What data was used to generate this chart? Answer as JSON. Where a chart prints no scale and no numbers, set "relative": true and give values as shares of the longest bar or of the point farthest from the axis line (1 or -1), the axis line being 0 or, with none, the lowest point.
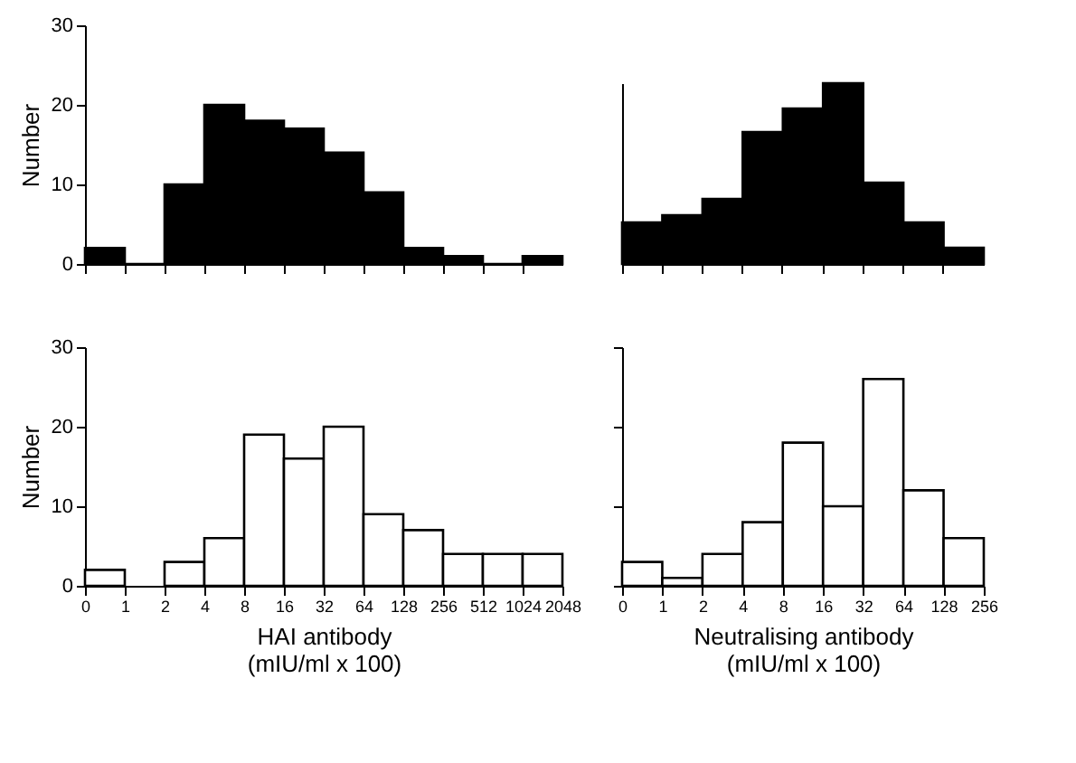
{
  "chart_data": [
    {
      "type": "bar",
      "ylabel": "Number",
      "categories": [
        null,
        null,
        null,
        null,
        null,
        null,
        null,
        null,
        null,
        null,
        null,
        null
      ],
      "values": [
        2,
        0,
        10,
        20,
        18,
        17,
        14,
        9,
        2,
        1,
        0,
        1
      ],
      "color": "#000000",
      "ylim": [
        0,
        30
      ],
      "yticks": [
        0,
        10,
        20,
        30
      ],
      "tick_labels": "y",
      "grid": false
    },
    {
      "type": "bar",
      "relative": true,
      "categories": [
        null,
        null,
        null,
        null,
        null,
        null,
        null,
        null,
        null
      ],
      "values": [
        0.23,
        0.27,
        0.36,
        0.73,
        0.86,
        1,
        0.45,
        0.23,
        0.09
      ],
      "color": "#000000",
      "tick_labels": false,
      "grid": false
    },
    {
      "type": "histogram",
      "ylabel": "Number",
      "xlabel": "HAI antibody\n(mIU/ml x 100)",
      "log": "x",
      "bins": [
        0.5,
        1,
        2,
        4,
        8,
        16,
        32,
        64,
        128,
        256,
        512,
        1024,
        2048
      ],
      "values": [
        2,
        0,
        3,
        6,
        19,
        16,
        20,
        9,
        7,
        4,
        4,
        4
      ],
      "color": "#ffffff",
      "xlim": [
        0.5,
        2048
      ],
      "ylim": [
        0,
        30
      ],
      "yticks": [
        0,
        10,
        20,
        30
      ],
      "xticks": [
        {
          "value": 0.5,
          "label": "0"
        },
        1,
        2,
        4,
        8,
        16,
        32,
        64,
        128,
        256,
        512,
        1024,
        2048
      ],
      "grid": false
    },
    {
      "type": "histogram",
      "xlabel": "Neutralising antibody\n(mIU/ml x 100)",
      "log": "x",
      "bins": [
        0.5,
        1,
        2,
        4,
        8,
        16,
        32,
        64,
        128,
        256
      ],
      "values": [
        3,
        1,
        4,
        8,
        18,
        10,
        26,
        12,
        6
      ],
      "color": "#ffffff",
      "xlim": [
        0.5,
        256
      ],
      "ylim": [
        0,
        30
      ],
      "yticks": [
        0,
        10,
        20,
        30
      ],
      "xticks": [
        {
          "value": 0.5,
          "label": "0"
        },
        1,
        2,
        4,
        8,
        16,
        32,
        64,
        128,
        256
      ],
      "tick_labels": "x",
      "grid": false
    }
  ]
}
